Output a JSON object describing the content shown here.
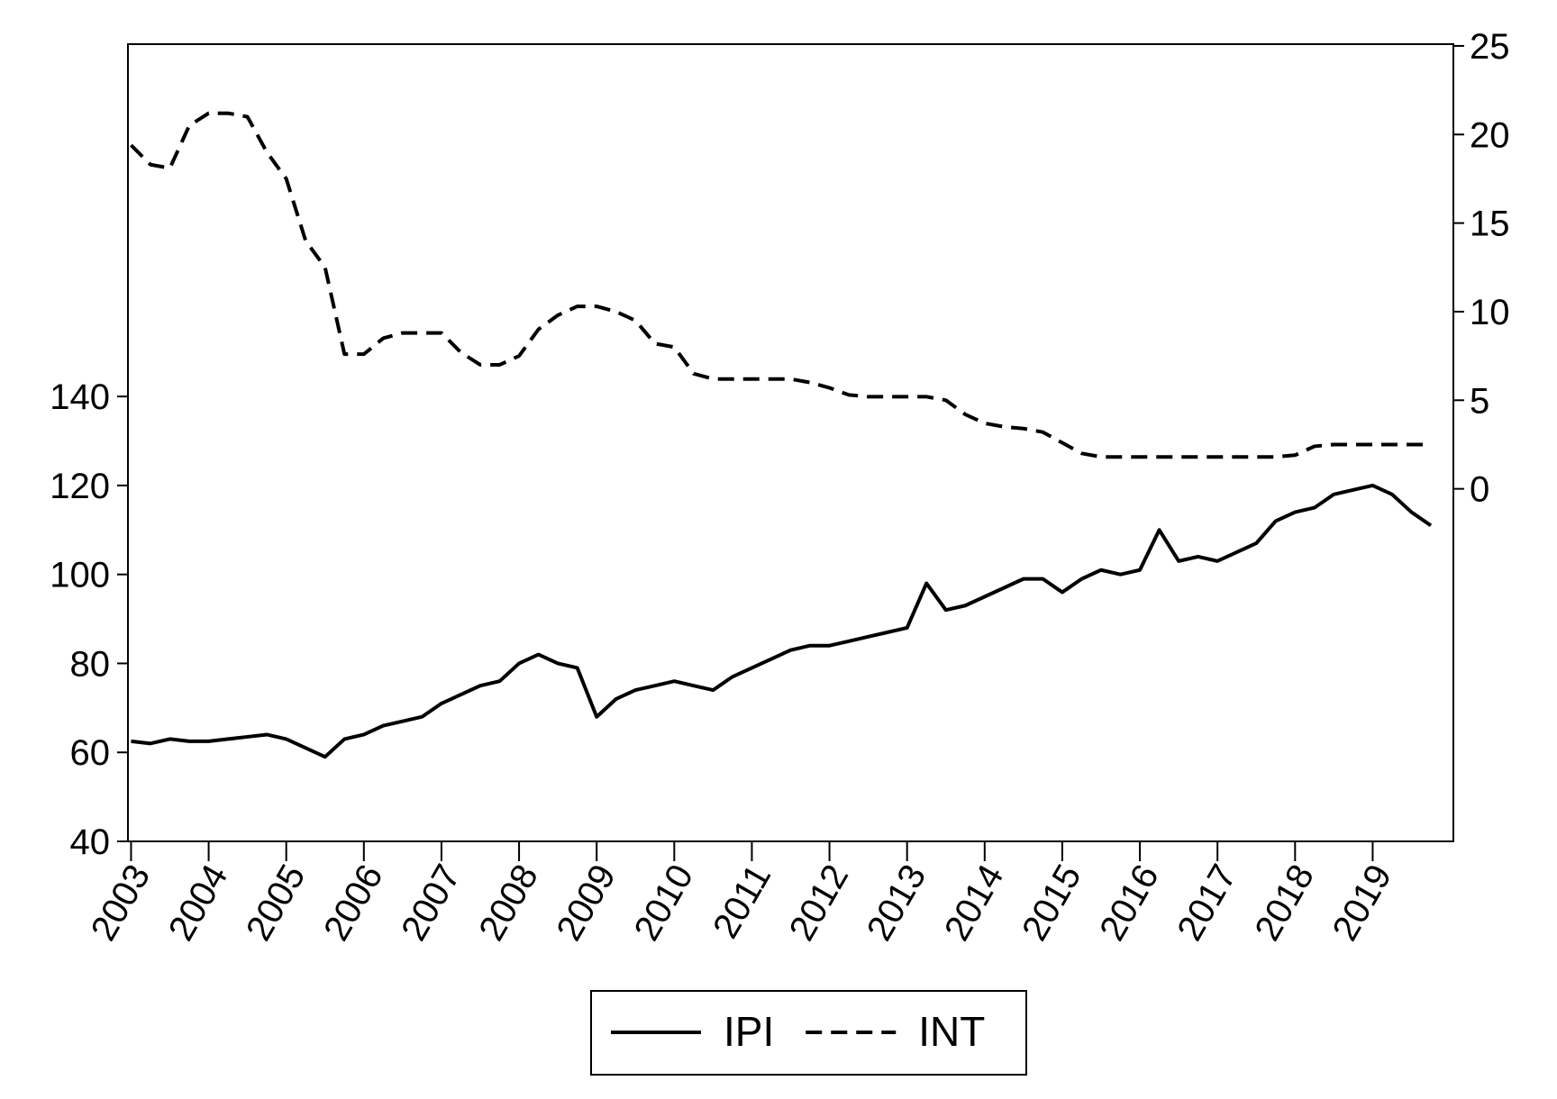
{
  "chart_data": {
    "type": "line",
    "x": [
      2003,
      2003.25,
      2003.5,
      2003.75,
      2004,
      2004.25,
      2004.5,
      2004.75,
      2005,
      2005.25,
      2005.5,
      2005.75,
      2006,
      2006.25,
      2006.5,
      2006.75,
      2007,
      2007.25,
      2007.5,
      2007.75,
      2008,
      2008.25,
      2008.5,
      2008.75,
      2009,
      2009.25,
      2009.5,
      2009.75,
      2010,
      2010.25,
      2010.5,
      2010.75,
      2011,
      2011.25,
      2011.5,
      2011.75,
      2012,
      2012.25,
      2012.5,
      2012.75,
      2013,
      2013.25,
      2013.5,
      2013.75,
      2014,
      2014.25,
      2014.5,
      2014.75,
      2015,
      2015.25,
      2015.5,
      2015.75,
      2016,
      2016.25,
      2016.5,
      2016.75,
      2017,
      2017.25,
      2017.5,
      2017.75,
      2018,
      2018.25,
      2018.5,
      2018.75,
      2019,
      2019.25,
      2019.5,
      2019.75
    ],
    "series": [
      {
        "name": "IPI",
        "color": "#000000",
        "dash": false,
        "values": [
          62.5,
          62,
          63,
          62.5,
          62.5,
          63,
          63.5,
          64,
          63,
          61,
          59,
          63,
          64,
          66,
          67,
          68,
          71,
          73,
          75,
          76,
          80,
          82,
          80,
          79,
          68,
          72,
          74,
          75,
          76,
          75,
          74,
          77,
          79,
          81,
          83,
          84,
          84,
          85,
          86,
          87,
          88,
          98,
          92,
          93,
          95,
          97,
          99,
          99,
          96,
          99,
          101,
          100,
          101,
          110,
          103,
          104,
          103,
          105,
          107,
          112,
          114,
          115,
          118,
          119,
          120,
          118,
          114,
          111
        ]
      },
      {
        "name": "INT",
        "color": "#000000",
        "dash": true,
        "axis": "y2",
        "values": [
          19.4,
          18.3,
          18.1,
          20.5,
          21.2,
          21.2,
          21,
          19,
          17.5,
          14,
          12.5,
          7.6,
          7.6,
          8.5,
          8.8,
          8.8,
          8.8,
          7.7,
          7,
          7,
          7.5,
          9,
          9.8,
          10.3,
          10.3,
          10,
          9.5,
          8.2,
          8,
          6.5,
          6.2,
          6.2,
          6.2,
          6.2,
          6.2,
          6,
          5.7,
          5.3,
          5.2,
          5.2,
          5.2,
          5.2,
          5,
          4.2,
          3.7,
          3.5,
          3.4,
          3.2,
          2.6,
          2,
          1.8,
          1.8,
          1.8,
          1.8,
          1.8,
          1.8,
          1.8,
          1.8,
          1.8,
          1.8,
          1.9,
          2.4,
          2.5,
          2.5,
          2.5,
          2.5,
          2.5,
          2.5
        ]
      }
    ],
    "xlim": [
      2002.96,
      2020.04
    ],
    "xticks": [
      2003,
      2004,
      2005,
      2006,
      2007,
      2008,
      2009,
      2010,
      2011,
      2012,
      2013,
      2014,
      2015,
      2016,
      2017,
      2018,
      2019
    ],
    "ylim": [
      40,
      219.2
    ],
    "yticks": [
      40,
      60,
      80,
      100,
      120,
      140
    ],
    "y2lim": [
      -19.9,
      25.1
    ],
    "y2ticks": [
      0,
      5,
      10,
      15,
      20,
      25
    ],
    "legend": "bottom"
  }
}
